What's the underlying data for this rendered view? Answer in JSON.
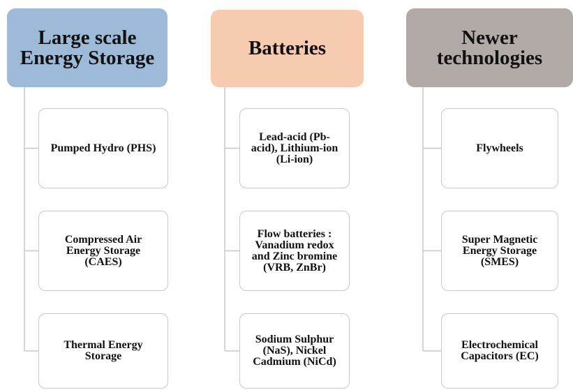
{
  "columns": [
    {
      "title": "Large scale Energy Storage",
      "items": [
        "Pumped Hydro (PHS)",
        "Compressed Air Energy Storage (CAES)",
        "Thermal Energy Storage"
      ]
    },
    {
      "title": "Batteries",
      "items": [
        "Lead-acid (Pb-acid), Lithium-ion (Li-ion)",
        "Flow batteries : Vanadium redox and Zinc bromine (VRB, ZnBr)",
        "Sodium Sulphur (NaS), Nickel Cadmium (NiCd)"
      ]
    },
    {
      "title": "Newer technologies",
      "items": [
        "Flywheels",
        "Super Magnetic Energy Storage (SMES)",
        "Electrochemical Capacitors (EC)"
      ]
    }
  ]
}
